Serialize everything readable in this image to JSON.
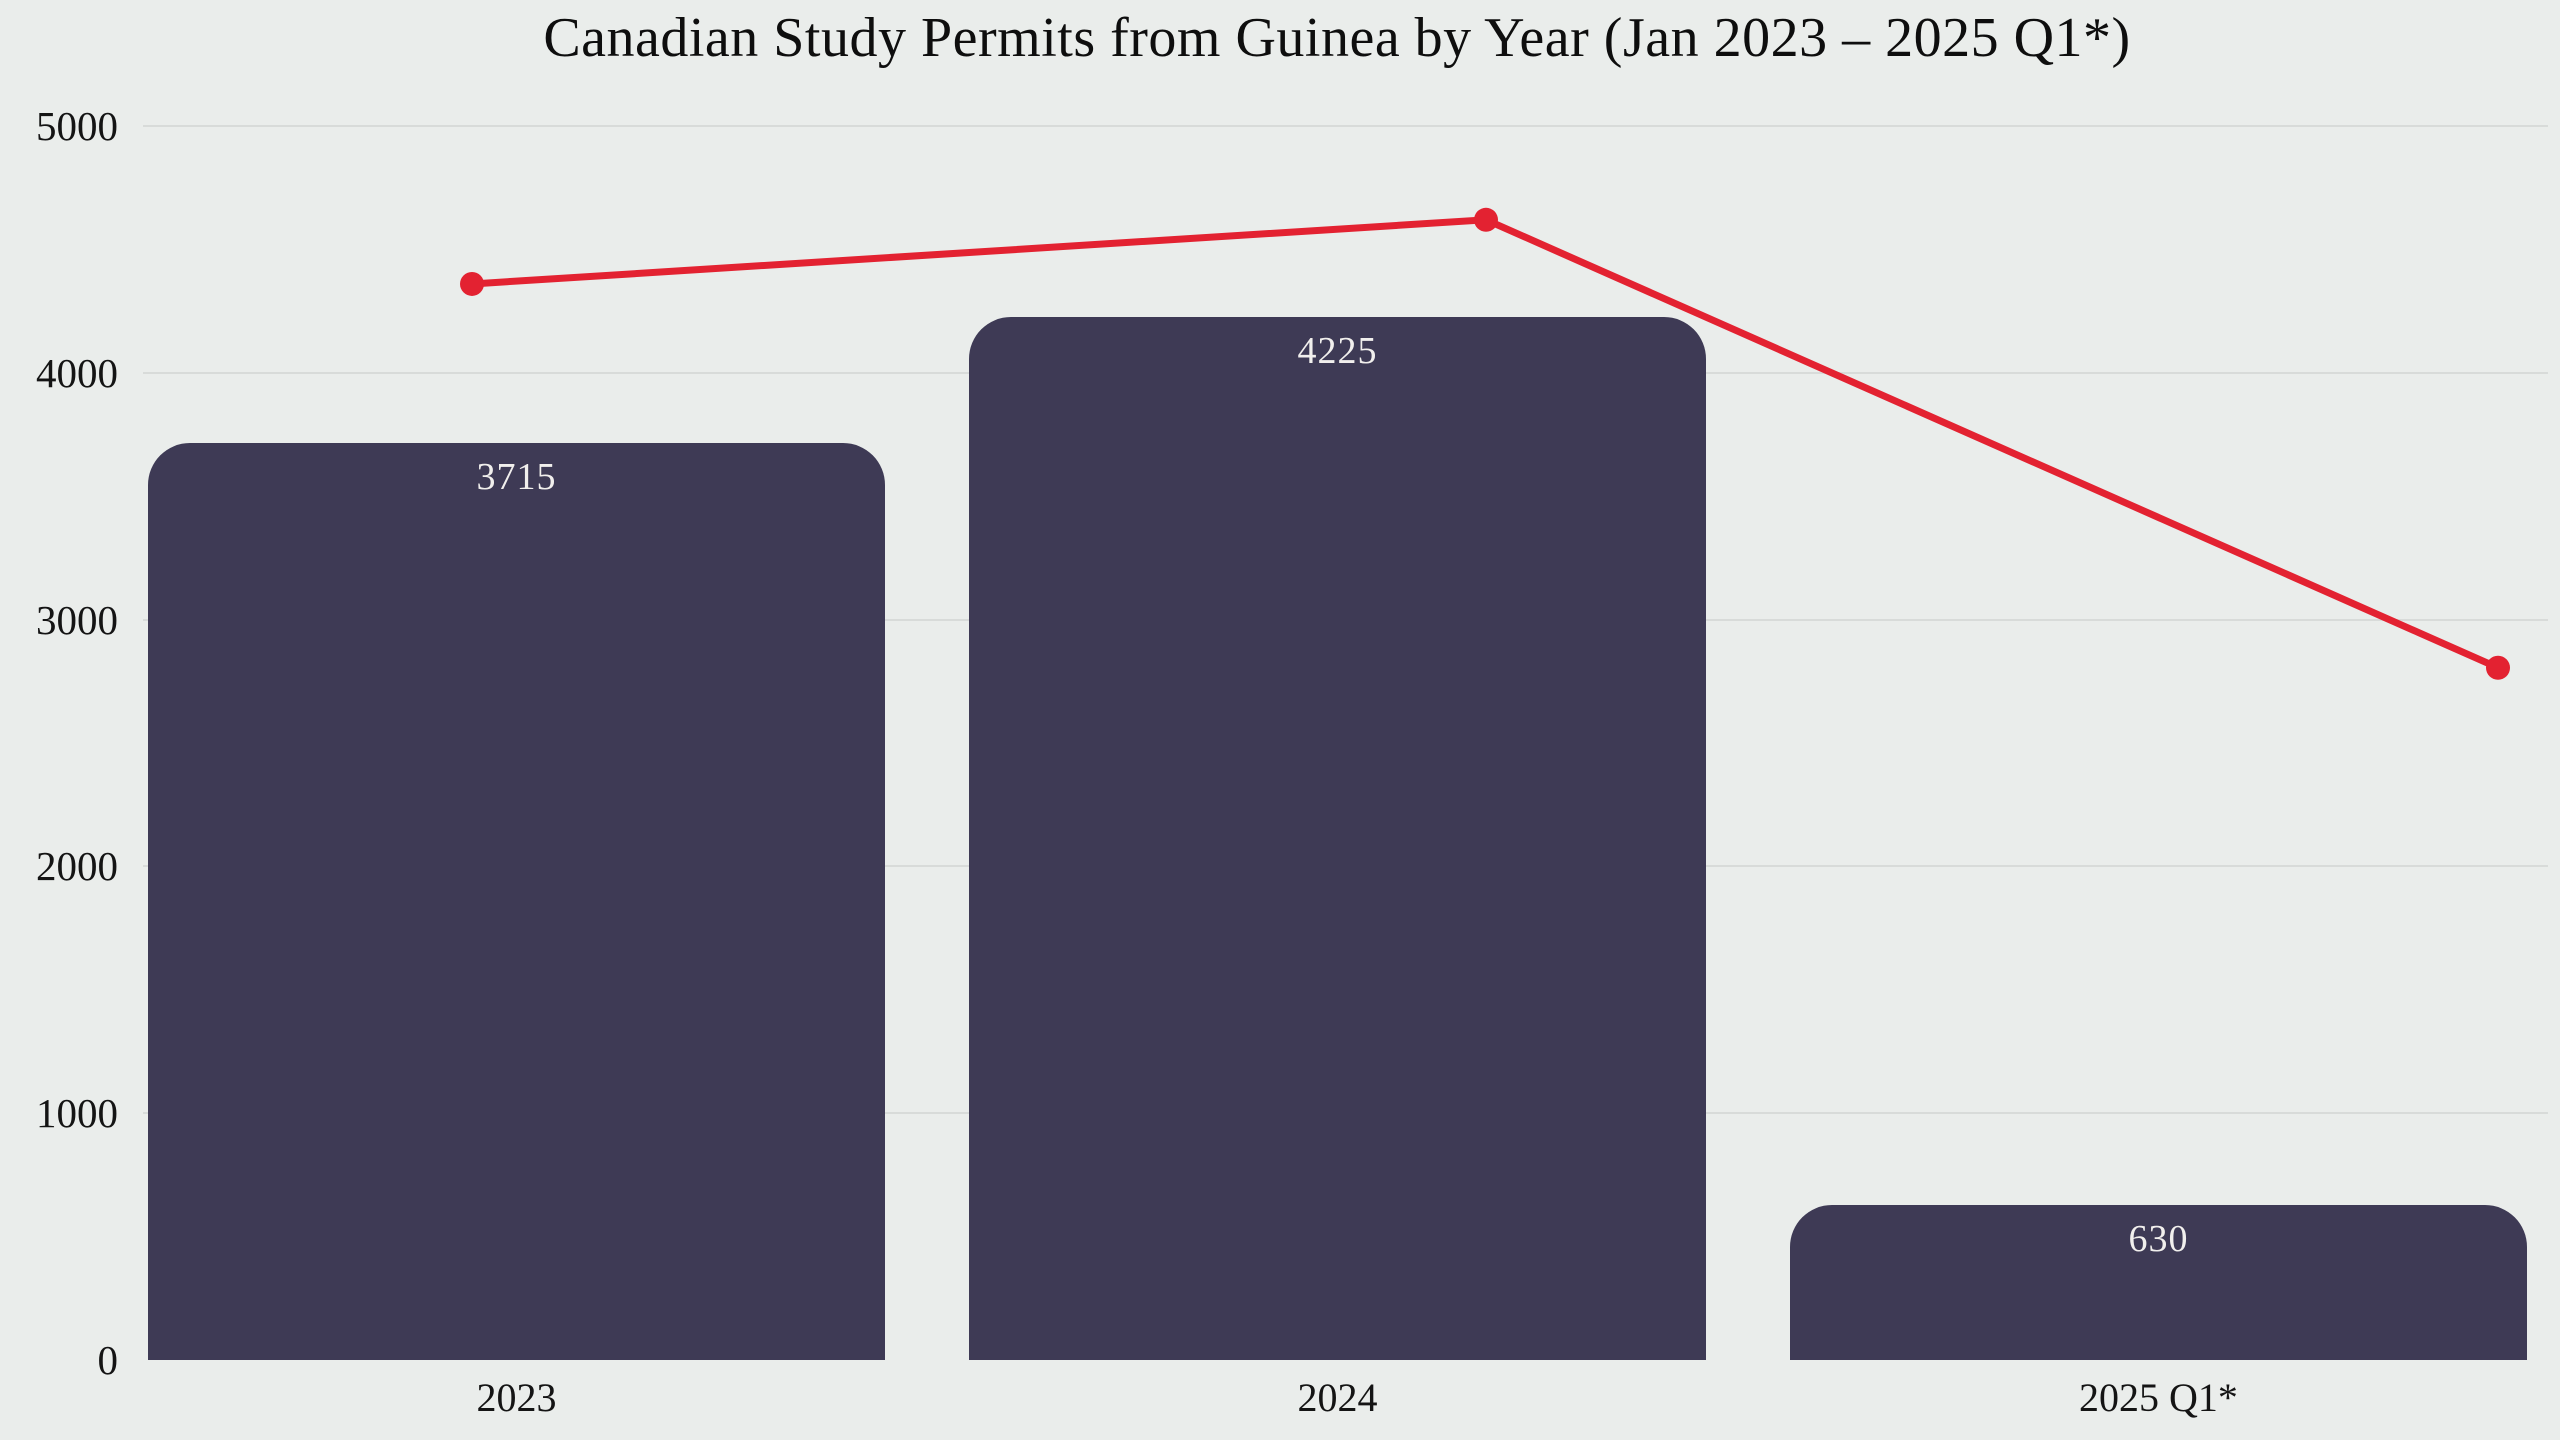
{
  "page": {
    "background_color": "#eaedeb"
  },
  "chart_data": {
    "type": "bar",
    "title": "Canadian Study Permits from Guinea by Year (Jan 2023 – 2025 Q1*)",
    "categories": [
      "2023",
      "2024",
      "2025 Q1*"
    ],
    "series": [
      {
        "name": "study-permits-bars",
        "type": "bar",
        "values": [
          3715,
          4225,
          630
        ],
        "value_labels": [
          "3715",
          "4225",
          "630"
        ],
        "color": "#3e3a55",
        "label_color": "#f1efed"
      },
      {
        "name": "trend-line-unlabeled",
        "type": "line",
        "values": [
          4360,
          4620,
          2805
        ],
        "values_estimated": true,
        "color": "#e32231",
        "markers": "dot"
      }
    ],
    "xlabel": "",
    "ylabel": "",
    "ylim": [
      0,
      5000
    ],
    "yticks": [
      0,
      1000,
      2000,
      3000,
      4000,
      5000
    ],
    "grid": true,
    "grid_color": "#d8dbd9",
    "legend": false,
    "background_color": "#eaedeb",
    "text_color": "#141414"
  }
}
